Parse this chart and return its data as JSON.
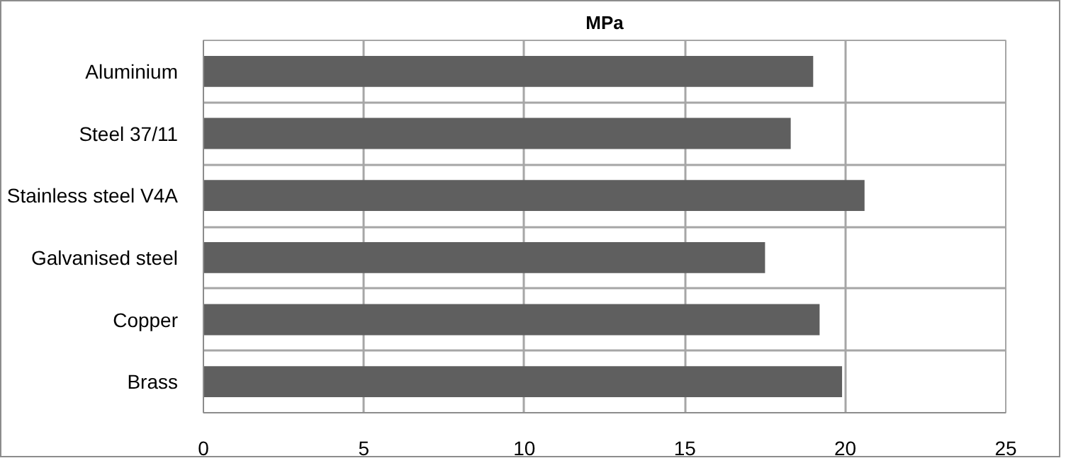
{
  "chart_data": {
    "type": "bar",
    "orientation": "horizontal",
    "title": "MPa",
    "categories": [
      "Aluminium",
      "Steel 37/11",
      "Stainless steel V4A",
      "Galvanised steel",
      "Copper",
      "Brass"
    ],
    "values": [
      19.0,
      18.3,
      20.6,
      17.5,
      19.2,
      19.9
    ],
    "color": "#5f5f5f",
    "xlim": [
      0,
      25
    ],
    "xticks": [
      0,
      5,
      10,
      15,
      20,
      25
    ],
    "grid": true
  }
}
